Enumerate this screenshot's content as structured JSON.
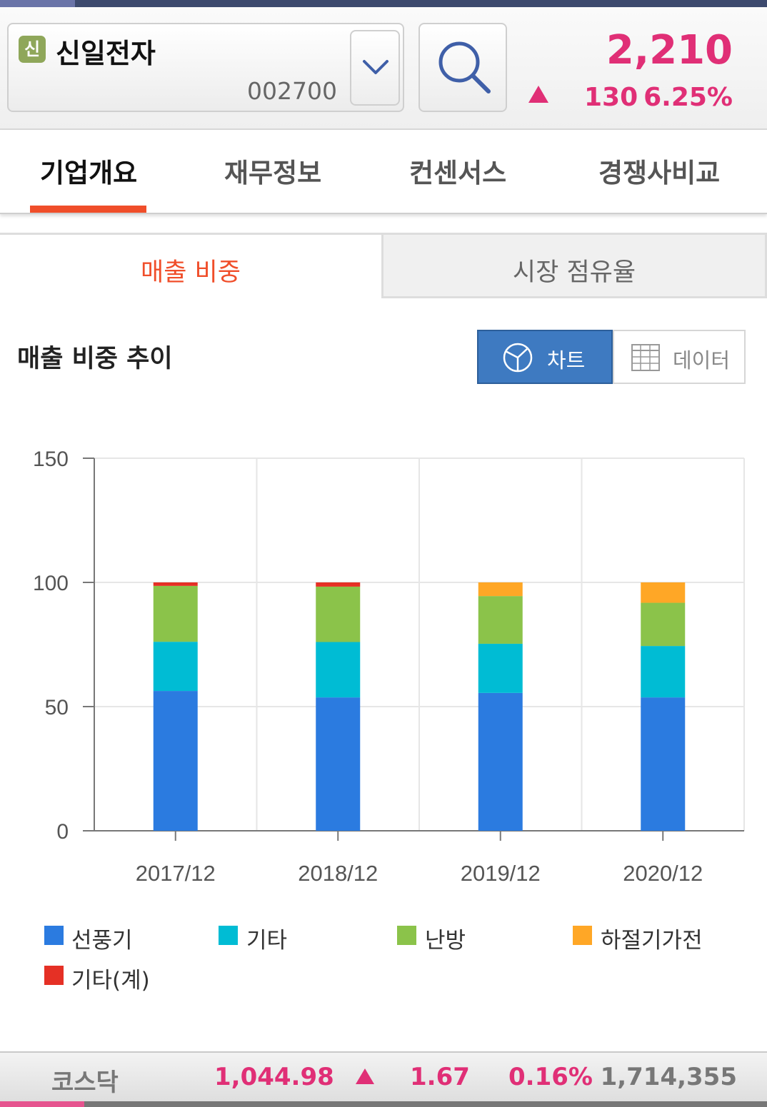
{
  "header": {
    "badge": "신",
    "stock_name": "신일전자",
    "stock_code": "002700",
    "price": "2,210",
    "change": "130",
    "change_pct": "6.25%",
    "price_color": "#e02f76"
  },
  "tabs": [
    {
      "label": "기업개요",
      "active": true
    },
    {
      "label": "재무정보",
      "active": false
    },
    {
      "label": "컨센서스",
      "active": false
    },
    {
      "label": "경쟁사비교",
      "active": false
    }
  ],
  "subtabs": [
    {
      "label": "매출 비중",
      "active": true
    },
    {
      "label": "시장 점유율",
      "active": false
    }
  ],
  "section": {
    "title": "매출 비중 추이",
    "view_chart": "차트",
    "view_data": "데이터"
  },
  "chart_data": {
    "type": "bar",
    "stacked": true,
    "categories": [
      "2017/12",
      "2018/12",
      "2019/12",
      "2020/12"
    ],
    "ylim": [
      0,
      150
    ],
    "yticks": [
      0,
      50,
      100,
      150
    ],
    "grid": true,
    "legend_position": "bottom",
    "series": [
      {
        "name": "선풍기",
        "color": "#2b7be0",
        "values": [
          56.3,
          53.7,
          55.5,
          53.7
        ]
      },
      {
        "name": "기타",
        "color": "#00bcd4",
        "values": [
          19.8,
          22.3,
          19.8,
          20.7
        ]
      },
      {
        "name": "난방",
        "color": "#8bc34a",
        "values": [
          22.5,
          22.3,
          19.2,
          17.4
        ]
      },
      {
        "name": "하절기가전",
        "color": "#ffa726",
        "values": [
          0,
          0,
          5.5,
          8.2
        ]
      },
      {
        "name": "기타(계)",
        "color": "#e53025",
        "values": [
          1.4,
          1.7,
          0,
          0
        ]
      }
    ]
  },
  "footer": {
    "index_name": "코스닥",
    "index_value": "1,044.98",
    "index_change": "1.67",
    "index_pct": "0.16%",
    "volume": "1,714,355"
  }
}
